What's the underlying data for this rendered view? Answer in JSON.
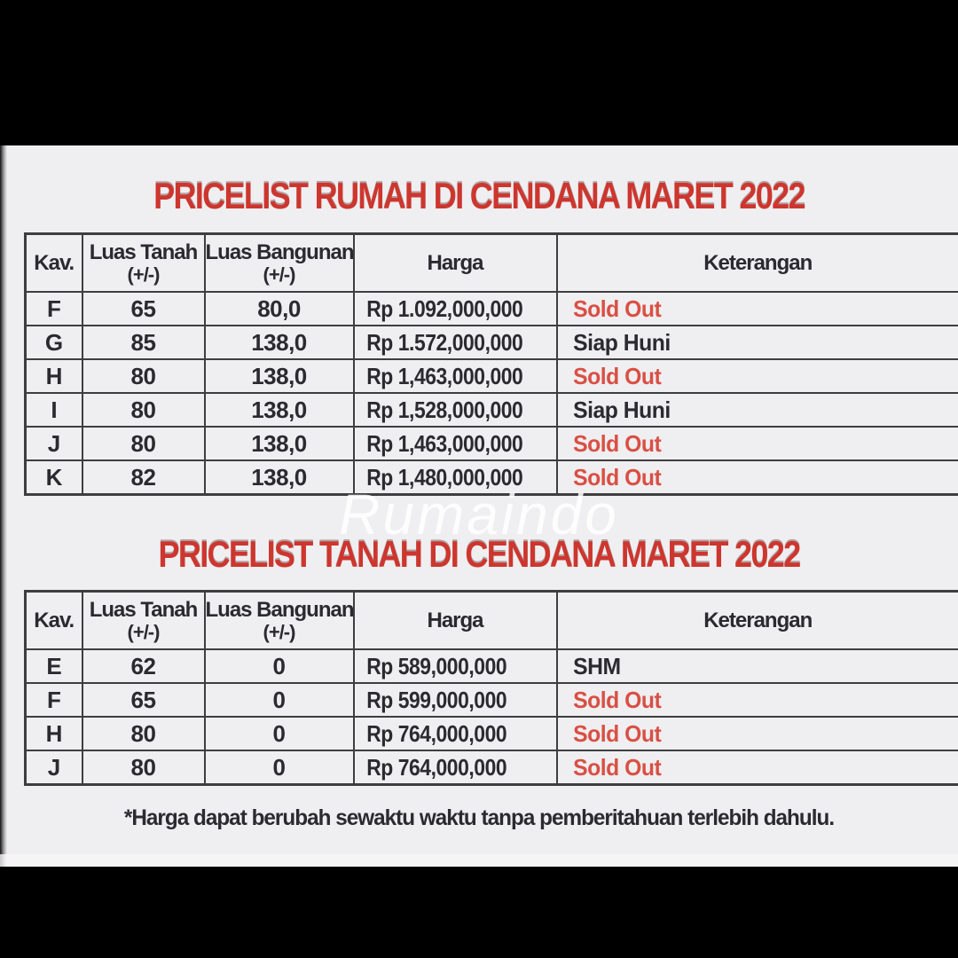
{
  "page": {
    "watermark": "Rumaindo",
    "footer_note": "*Harga dapat berubah sewaktu waktu tanpa pemberitahuan terlebih dahulu.",
    "colors": {
      "title_red": "#cd362e",
      "sold_out_red": "#d94f44",
      "text_dark": "#2b2b2f",
      "grid_line": "#3e3e40",
      "sheet_background": "#efeef0",
      "letterbox_black": "#000000"
    }
  },
  "tables": [
    {
      "title": "PRICELIST RUMAH DI CENDANA MARET 2022",
      "headers": [
        {
          "label": "Kav.",
          "sub": ""
        },
        {
          "label": "Luas Tanah",
          "sub": "(+/-)"
        },
        {
          "label": "Luas Bangunan",
          "sub": "(+/-)"
        },
        {
          "label": "Harga",
          "sub": ""
        },
        {
          "label": "Keterangan",
          "sub": ""
        }
      ],
      "rows": [
        {
          "kav": "F",
          "luas_tanah": "65",
          "luas_bangunan": "80,0",
          "harga": "Rp 1.092,000,000",
          "keterangan": "Sold Out",
          "status": "sold"
        },
        {
          "kav": "G",
          "luas_tanah": "85",
          "luas_bangunan": "138,0",
          "harga": "Rp 1.572,000,000",
          "keterangan": "Siap Huni",
          "status": "available"
        },
        {
          "kav": "H",
          "luas_tanah": "80",
          "luas_bangunan": "138,0",
          "harga": "Rp 1,463,000,000",
          "keterangan": "Sold Out",
          "status": "sold"
        },
        {
          "kav": "I",
          "luas_tanah": "80",
          "luas_bangunan": "138,0",
          "harga": "Rp 1,528,000,000",
          "keterangan": "Siap Huni",
          "status": "available"
        },
        {
          "kav": "J",
          "luas_tanah": "80",
          "luas_bangunan": "138,0",
          "harga": "Rp 1,463,000,000",
          "keterangan": "Sold Out",
          "status": "sold"
        },
        {
          "kav": "K",
          "luas_tanah": "82",
          "luas_bangunan": "138,0",
          "harga": "Rp 1,480,000,000",
          "keterangan": "Sold Out",
          "status": "sold"
        }
      ]
    },
    {
      "title": "PRICELIST TANAH DI CENDANA MARET 2022",
      "headers": [
        {
          "label": "Kav.",
          "sub": ""
        },
        {
          "label": "Luas Tanah",
          "sub": "(+/-)"
        },
        {
          "label": "Luas Bangunan",
          "sub": "(+/-)"
        },
        {
          "label": "Harga",
          "sub": ""
        },
        {
          "label": "Keterangan",
          "sub": ""
        }
      ],
      "rows": [
        {
          "kav": "E",
          "luas_tanah": "62",
          "luas_bangunan": "0",
          "harga": "Rp 589,000,000",
          "keterangan": "SHM",
          "status": "available"
        },
        {
          "kav": "F",
          "luas_tanah": "65",
          "luas_bangunan": "0",
          "harga": "Rp 599,000,000",
          "keterangan": "Sold Out",
          "status": "sold"
        },
        {
          "kav": "H",
          "luas_tanah": "80",
          "luas_bangunan": "0",
          "harga": "Rp 764,000,000",
          "keterangan": "Sold Out",
          "status": "sold"
        },
        {
          "kav": "J",
          "luas_tanah": "80",
          "luas_bangunan": "0",
          "harga": "Rp 764,000,000",
          "keterangan": "Sold Out",
          "status": "sold"
        }
      ]
    }
  ]
}
